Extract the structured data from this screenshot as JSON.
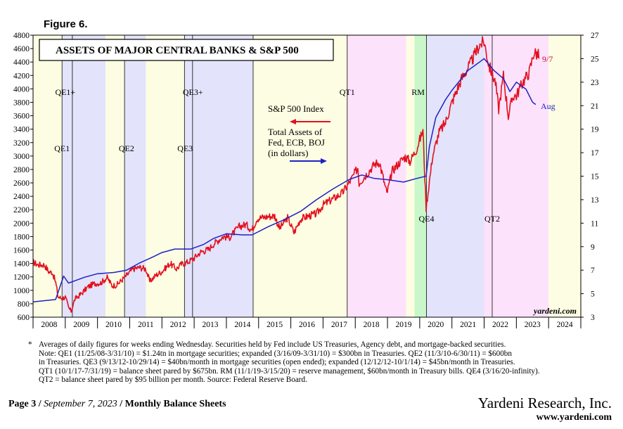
{
  "figure_label": "Figure 6.",
  "chart_data": {
    "type": "line",
    "title": "ASSETS OF MAJOR CENTRAL BANKS & S&P 500",
    "watermark": "yardeni.com",
    "x_axis": {
      "range": [
        2008.0,
        2025.0
      ],
      "tick_labels": [
        "2008",
        "2009",
        "2010",
        "2011",
        "2012",
        "2013",
        "2014",
        "2015",
        "2016",
        "2017",
        "2018",
        "2019",
        "2020",
        "2021",
        "2022",
        "2023",
        "2024"
      ]
    },
    "y_left": {
      "range": [
        600,
        4800
      ],
      "ticks": [
        600,
        800,
        1000,
        1200,
        1400,
        1600,
        1800,
        2000,
        2200,
        2400,
        2600,
        2800,
        3000,
        3200,
        3400,
        3600,
        3800,
        4000,
        4200,
        4400,
        4600,
        4800
      ],
      "series": "S&P 500 Index"
    },
    "y_right": {
      "range": [
        3,
        27
      ],
      "ticks": [
        3,
        5,
        7,
        9,
        11,
        13,
        15,
        17,
        19,
        21,
        23,
        25,
        27
      ],
      "series": "Total Assets of Fed, ECB, BOJ (in dollars)"
    },
    "legend": {
      "sp500": "S&P 500 Index",
      "assets_lines": [
        "Total Assets of",
        "Fed, ECB, BOJ",
        "(in dollars)"
      ]
    },
    "end_labels": {
      "sp500": "9/7",
      "assets": "Aug"
    },
    "colors": {
      "sp500": "#e3101f",
      "assets": "#1d22c4",
      "qe_yellow": "#fdfde3",
      "qe_blue": "#e3e3fb",
      "qt_pink": "#fde2fb",
      "rm_green": "#c9f7c9"
    },
    "shaded_periods": [
      {
        "start": 2008.0,
        "end": 2008.9,
        "color": "qe_yellow"
      },
      {
        "start": 2008.9,
        "end": 2009.22,
        "color": "qe_blue"
      },
      {
        "start": 2009.22,
        "end": 2010.25,
        "color": "qe_blue"
      },
      {
        "start": 2010.25,
        "end": 2010.84,
        "color": "qe_yellow"
      },
      {
        "start": 2010.84,
        "end": 2011.5,
        "color": "qe_blue"
      },
      {
        "start": 2011.5,
        "end": 2012.7,
        "color": "qe_yellow"
      },
      {
        "start": 2012.7,
        "end": 2012.95,
        "color": "qe_blue"
      },
      {
        "start": 2012.95,
        "end": 2014.83,
        "color": "qe_blue"
      },
      {
        "start": 2014.83,
        "end": 2017.75,
        "color": "qe_yellow"
      },
      {
        "start": 2017.75,
        "end": 2019.58,
        "color": "qt_pink"
      },
      {
        "start": 2019.58,
        "end": 2019.84,
        "color": "qe_yellow"
      },
      {
        "start": 2019.84,
        "end": 2020.21,
        "color": "rm_green"
      },
      {
        "start": 2020.21,
        "end": 2022.0,
        "color": "qe_blue"
      },
      {
        "start": 2022.0,
        "end": 2024.0,
        "color": "qt_pink"
      },
      {
        "start": 2024.0,
        "end": 2025.0,
        "color": "qe_yellow"
      }
    ],
    "event_lines": [
      2008.9,
      2009.22,
      2010.84,
      2012.7,
      2012.95,
      2014.83,
      2017.75,
      2020.21,
      2022.25
    ],
    "event_labels": [
      {
        "text": "QE1+",
        "x": 2009.0,
        "row": "upper"
      },
      {
        "text": "QE1",
        "x": 2008.9,
        "row": "lower"
      },
      {
        "text": "QE2",
        "x": 2010.9,
        "row": "lower"
      },
      {
        "text": "QE3+",
        "x": 2012.96,
        "row": "upper"
      },
      {
        "text": "QE3",
        "x": 2012.72,
        "row": "lower"
      },
      {
        "text": "QT1",
        "x": 2017.75,
        "row": "upper"
      },
      {
        "text": "RM",
        "x": 2019.95,
        "row": "upper"
      },
      {
        "text": "QE4",
        "x": 2020.21,
        "row": "bottom"
      },
      {
        "text": "QT2",
        "x": 2022.25,
        "row": "bottom"
      }
    ],
    "sp500_points": [
      [
        2008.0,
        1420
      ],
      [
        2008.15,
        1380
      ],
      [
        2008.35,
        1380
      ],
      [
        2008.5,
        1270
      ],
      [
        2008.6,
        1270
      ],
      [
        2008.7,
        1120
      ],
      [
        2008.78,
        900
      ],
      [
        2008.9,
        880
      ],
      [
        2009.0,
        900
      ],
      [
        2009.1,
        740
      ],
      [
        2009.18,
        690
      ],
      [
        2009.3,
        870
      ],
      [
        2009.5,
        950
      ],
      [
        2009.7,
        1050
      ],
      [
        2009.9,
        1100
      ],
      [
        2010.1,
        1110
      ],
      [
        2010.3,
        1190
      ],
      [
        2010.45,
        1070
      ],
      [
        2010.6,
        1080
      ],
      [
        2010.75,
        1150
      ],
      [
        2010.9,
        1220
      ],
      [
        2011.1,
        1320
      ],
      [
        2011.3,
        1340
      ],
      [
        2011.5,
        1320
      ],
      [
        2011.62,
        1130
      ],
      [
        2011.8,
        1220
      ],
      [
        2012.0,
        1280
      ],
      [
        2012.25,
        1400
      ],
      [
        2012.45,
        1320
      ],
      [
        2012.6,
        1390
      ],
      [
        2012.8,
        1420
      ],
      [
        2013.0,
        1480
      ],
      [
        2013.2,
        1570
      ],
      [
        2013.45,
        1610
      ],
      [
        2013.6,
        1690
      ],
      [
        2013.9,
        1800
      ],
      [
        2014.1,
        1790
      ],
      [
        2014.4,
        1950
      ],
      [
        2014.6,
        1980
      ],
      [
        2014.8,
        1900
      ],
      [
        2014.95,
        2070
      ],
      [
        2015.3,
        2100
      ],
      [
        2015.5,
        2110
      ],
      [
        2015.65,
        1920
      ],
      [
        2015.9,
        2080
      ],
      [
        2016.1,
        1860
      ],
      [
        2016.3,
        2060
      ],
      [
        2016.5,
        2100
      ],
      [
        2016.8,
        2140
      ],
      [
        2017.0,
        2270
      ],
      [
        2017.3,
        2360
      ],
      [
        2017.6,
        2450
      ],
      [
        2017.9,
        2670
      ],
      [
        2018.08,
        2830
      ],
      [
        2018.12,
        2600
      ],
      [
        2018.3,
        2700
      ],
      [
        2018.6,
        2880
      ],
      [
        2018.75,
        2910
      ],
      [
        2018.98,
        2440
      ],
      [
        2019.15,
        2780
      ],
      [
        2019.4,
        2920
      ],
      [
        2019.55,
        2990
      ],
      [
        2019.7,
        2920
      ],
      [
        2019.9,
        3100
      ],
      [
        2020.1,
        3380
      ],
      [
        2020.2,
        2230
      ],
      [
        2020.4,
        3000
      ],
      [
        2020.6,
        3350
      ],
      [
        2020.8,
        3500
      ],
      [
        2021.0,
        3800
      ],
      [
        2021.3,
        4150
      ],
      [
        2021.6,
        4400
      ],
      [
        2021.85,
        4650
      ],
      [
        2022.0,
        4700
      ],
      [
        2022.15,
        4350
      ],
      [
        2022.35,
        4100
      ],
      [
        2022.45,
        3700
      ],
      [
        2022.6,
        4200
      ],
      [
        2022.75,
        3600
      ],
      [
        2022.9,
        3900
      ],
      [
        2023.0,
        3900
      ],
      [
        2023.2,
        4100
      ],
      [
        2023.4,
        4250
      ],
      [
        2023.55,
        4550
      ],
      [
        2023.68,
        4500
      ],
      [
        2023.7,
        4450
      ]
    ],
    "assets_points": [
      [
        2008.0,
        4.3
      ],
      [
        2008.7,
        4.5
      ],
      [
        2008.95,
        6.5
      ],
      [
        2009.1,
        5.9
      ],
      [
        2009.3,
        6.1
      ],
      [
        2009.6,
        6.4
      ],
      [
        2010.0,
        6.7
      ],
      [
        2010.5,
        6.8
      ],
      [
        2010.9,
        7.0
      ],
      [
        2011.3,
        7.6
      ],
      [
        2011.7,
        8.1
      ],
      [
        2012.0,
        8.5
      ],
      [
        2012.4,
        8.8
      ],
      [
        2012.9,
        8.8
      ],
      [
        2013.3,
        9.2
      ],
      [
        2013.6,
        9.7
      ],
      [
        2014.0,
        10.1
      ],
      [
        2014.5,
        10.0
      ],
      [
        2014.8,
        10.0
      ],
      [
        2015.3,
        10.7
      ],
      [
        2015.8,
        11.3
      ],
      [
        2016.3,
        12.0
      ],
      [
        2016.8,
        13.0
      ],
      [
        2017.3,
        13.9
      ],
      [
        2017.8,
        14.7
      ],
      [
        2018.2,
        15.1
      ],
      [
        2018.6,
        14.8
      ],
      [
        2019.0,
        14.7
      ],
      [
        2019.5,
        14.5
      ],
      [
        2019.9,
        14.8
      ],
      [
        2020.2,
        15.0
      ],
      [
        2020.3,
        17.5
      ],
      [
        2020.5,
        20.0
      ],
      [
        2020.8,
        21.5
      ],
      [
        2021.0,
        22.3
      ],
      [
        2021.5,
        24.0
      ],
      [
        2021.9,
        24.8
      ],
      [
        2022.0,
        25.0
      ],
      [
        2022.3,
        24.0
      ],
      [
        2022.6,
        23.3
      ],
      [
        2022.8,
        22.2
      ],
      [
        2023.0,
        23.0
      ],
      [
        2023.3,
        22.4
      ],
      [
        2023.5,
        21.3
      ],
      [
        2023.6,
        21.1
      ]
    ]
  },
  "footnote": {
    "marker": "*",
    "lines": [
      "Averages of daily figures for weeks ending Wednesday. Securities held by Fed include US Treasuries, Agency debt, and mortgage-backed securities.",
      "Note: QE1 (11/25/08-3/31/10) = $1.24tn in mortgage securities; expanded (3/16/09-3/31/10) = $300bn in Treasuries. QE2 (11/3/10-6/30/11) = $600bn",
      "in Treasuries. QE3 (9/13/12-10/29/14) = $40bn/month in mortgage securities (open ended); expanded (12/12/12-10/1/14) = $45bn/month in Treasuries.",
      "QT1 (10/1/17-7/31/19) = balance sheet pared by $675bn. RM (11/1/19-3/15/20) = reserve management, $60bn/month in Treasury bills. QE4 (3/16/20-infinity).",
      "QT2 = balance sheet pared by $95 billion per month. Source: Federal Reserve Board."
    ]
  },
  "footer": {
    "page": "Page 3",
    "sep1": " / ",
    "date": "September 7, 2023",
    "sep2": " / ",
    "doc": "Monthly Balance Sheets",
    "firm": "Yardeni Research, Inc.",
    "url": "www.yardeni.com"
  }
}
